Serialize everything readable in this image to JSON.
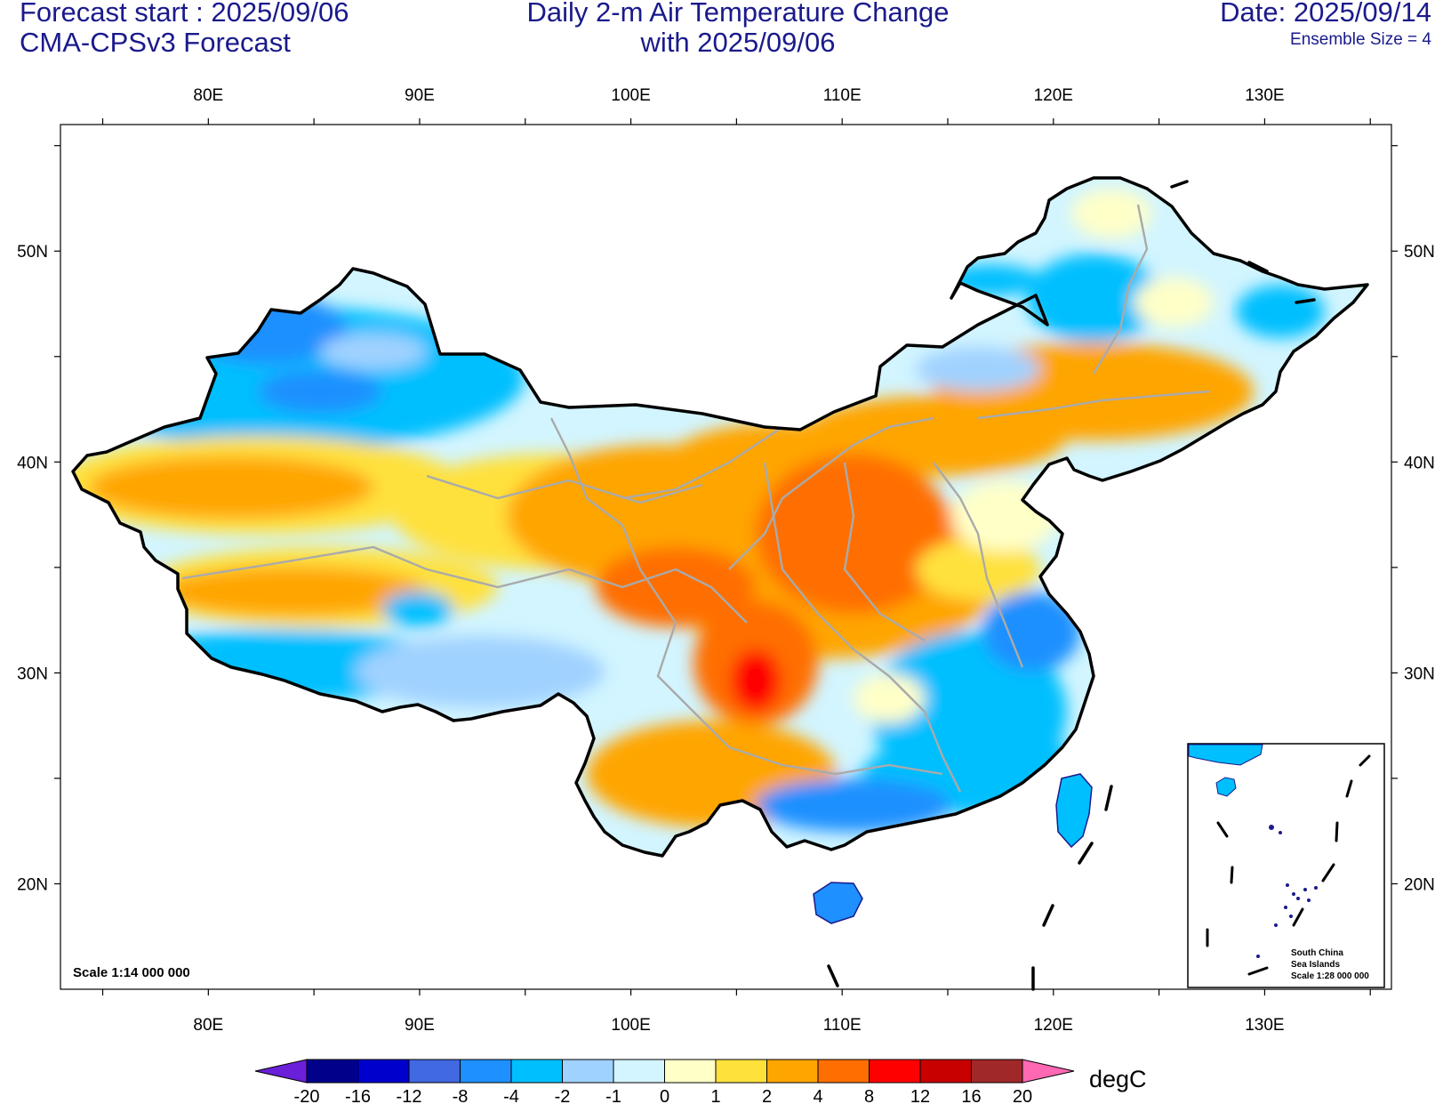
{
  "header": {
    "forecast_start": "Forecast start : 2025/09/06",
    "model": "CMA-CPSv3 Forecast",
    "title_line1": "Daily 2-m Air Temperature Change",
    "title_line2": "with 2025/09/06",
    "date": "Date: 2025/09/14",
    "ensemble": "Ensemble Size = 4"
  },
  "axes": {
    "lon_labels": [
      "80E",
      "90E",
      "100E",
      "110E",
      "120E",
      "130E"
    ],
    "lat_labels": [
      "50N",
      "40N",
      "30N",
      "20N"
    ],
    "lon_range": [
      73,
      136
    ],
    "lat_range": [
      15,
      56
    ]
  },
  "map": {
    "scale_label": "Scale 1:14 000 000",
    "inset": {
      "line1": "South China",
      "line2": "Sea Islands",
      "line3": "Scale 1:28 000 000"
    }
  },
  "colorbar": {
    "unit": "degC",
    "labels": [
      "-20",
      "-16",
      "-12",
      "-8",
      "-4",
      "-2",
      "-1",
      "0",
      "1",
      "2",
      "4",
      "8",
      "12",
      "16",
      "20"
    ],
    "colors": [
      "#6a1fd8",
      "#00008b",
      "#0000cd",
      "#4169e1",
      "#1e90ff",
      "#00bfff",
      "#a0d2ff",
      "#d2f5ff",
      "#ffffc8",
      "#ffe13c",
      "#ffa500",
      "#ff6e00",
      "#ff0000",
      "#c80000",
      "#a02828",
      "#ff69b4"
    ]
  },
  "chart_data": {
    "type": "heatmap",
    "title": "Daily 2-m Air Temperature Change with 2025/09/06",
    "xlabel": "",
    "ylabel": "",
    "x_ticks": [
      "80E",
      "90E",
      "100E",
      "110E",
      "120E",
      "130E"
    ],
    "y_ticks": [
      "50N",
      "40N",
      "30N",
      "20N"
    ],
    "levels": [
      -20,
      -16,
      -12,
      -8,
      -4,
      -2,
      -1,
      0,
      1,
      2,
      4,
      8,
      12,
      16,
      20
    ],
    "unit": "degC",
    "regions": [
      {
        "lon": 83,
        "lat": 47.5,
        "value": -3
      },
      {
        "lon": 90,
        "lat": 45,
        "value": -3
      },
      {
        "lon": 82,
        "lat": 39.5,
        "value": 3
      },
      {
        "lon": 88,
        "lat": 33.5,
        "value": 2.5
      },
      {
        "lon": 102,
        "lat": 37,
        "value": 4
      },
      {
        "lon": 108,
        "lat": 35,
        "value": 6
      },
      {
        "lon": 106,
        "lat": 30,
        "value": 9
      },
      {
        "lon": 117,
        "lat": 42.5,
        "value": 3
      },
      {
        "lon": 128,
        "lat": 43,
        "value": 3
      },
      {
        "lon": 124,
        "lat": 48.5,
        "value": -3
      },
      {
        "lon": 115,
        "lat": 26,
        "value": -3
      },
      {
        "lon": 118,
        "lat": 31,
        "value": -4
      },
      {
        "lon": 93,
        "lat": 30,
        "value": -2.5
      }
    ]
  }
}
